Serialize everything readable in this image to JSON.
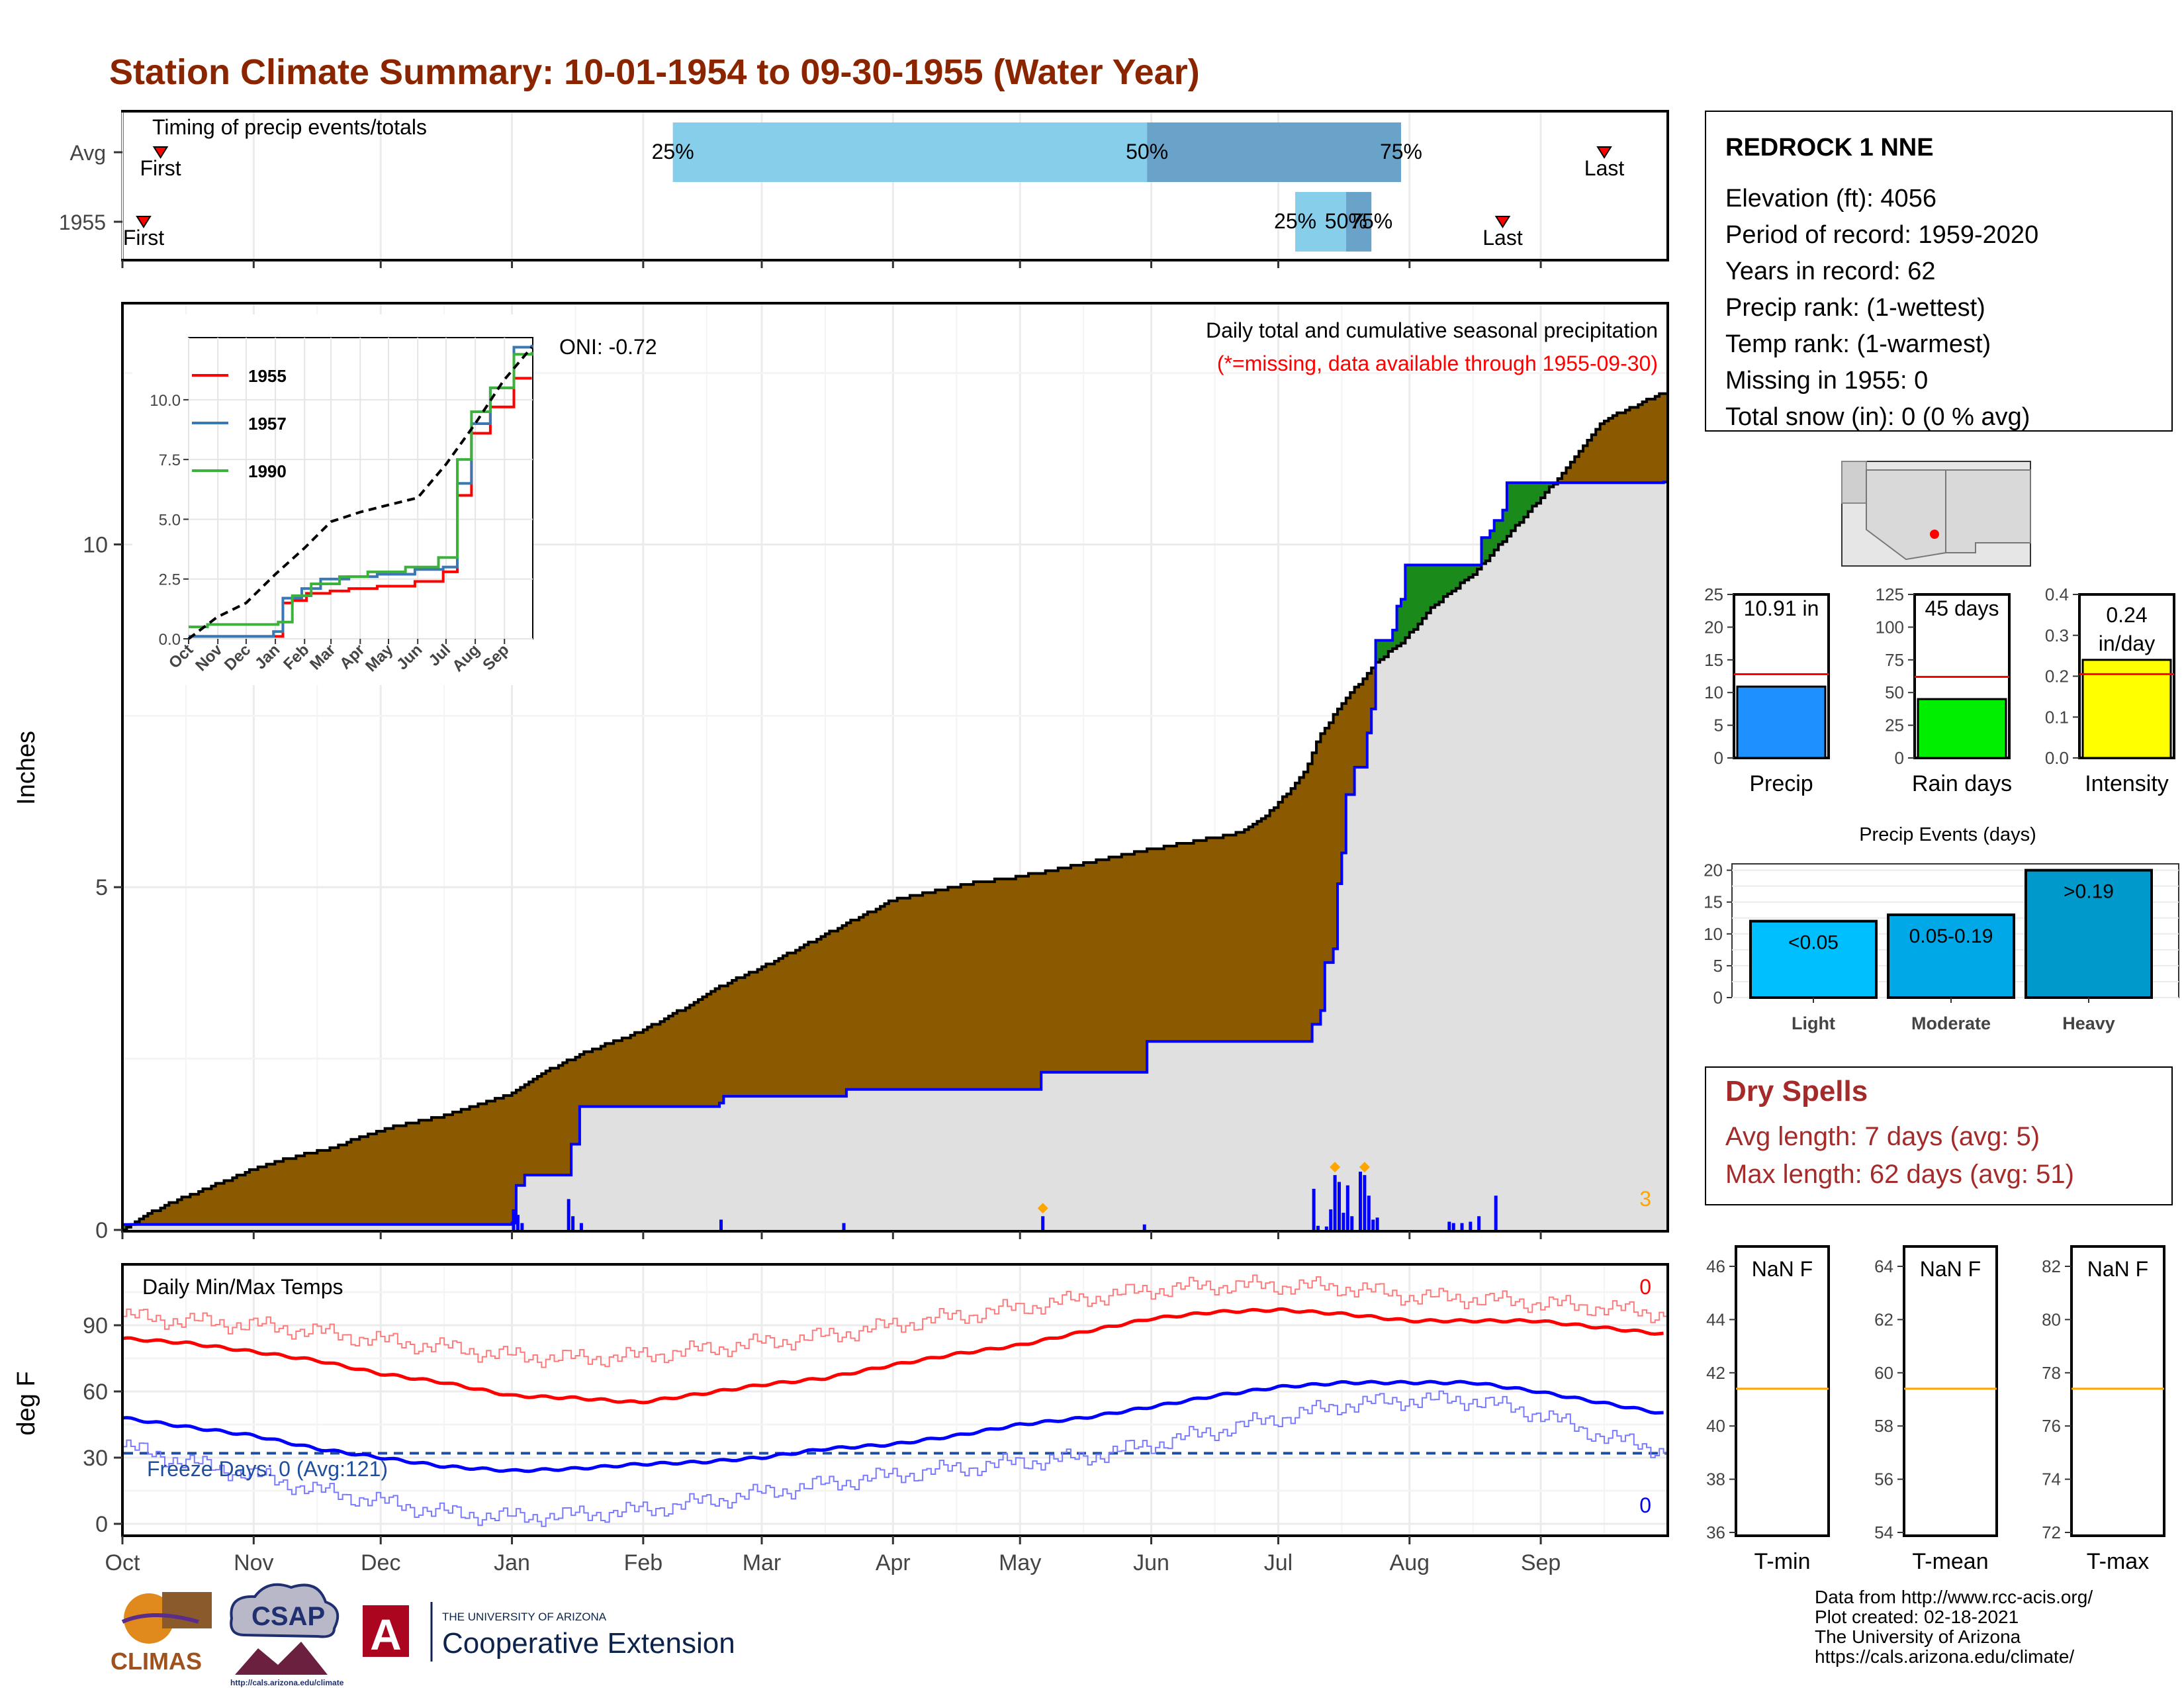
{
  "title": "Station Climate Summary: 10-01-1954 to 09-30-1955 (Water Year)",
  "colors": {
    "title": "#8b2500",
    "brown": "#8b5a00",
    "gray_fill": "#e0e0e0",
    "blue": "#0000ff",
    "green": "#1a8a1a",
    "light_blue": "#87ceeb",
    "mid_blue": "#6aa3c9",
    "red": "#ff0000",
    "orange": "#ffa500",
    "dry_red": "#a52a2a"
  },
  "months": [
    "Oct",
    "Nov",
    "Dec",
    "Jan",
    "Feb",
    "Mar",
    "Apr",
    "May",
    "Jun",
    "Jul",
    "Aug",
    "Sep"
  ],
  "timing": {
    "label": "Timing of precip events/totals",
    "rows": [
      {
        "name": "Avg",
        "first_label": "First",
        "last_label": "Last",
        "first_day": 9,
        "last_day": 350,
        "q25_day": 130,
        "q50_day": 242,
        "q75_day": 302,
        "q25": "25%",
        "q50": "50%",
        "q75": "75%"
      },
      {
        "name": "1955",
        "first_label": "First",
        "last_label": "Last",
        "first_day": 5,
        "last_day": 326,
        "q25_day": 277,
        "q50_day": 289,
        "q75_day": 295,
        "q25": "25%",
        "q50": "50%",
        "q75": "75%"
      }
    ]
  },
  "main_chart": {
    "ylabel": "Inches",
    "yticks": [
      0,
      5,
      10
    ],
    "ymax": 13.5,
    "note1": "Daily total and cumulative seasonal precipitation",
    "note2": "(*=missing, data available through 1955-09-30)",
    "oni": "ONI: -0.72",
    "corner_count": "3"
  },
  "chart_data": [
    {
      "type": "area",
      "title": "Daily total and cumulative seasonal precipitation",
      "ylabel": "Inches",
      "ylim": [
        0,
        13.5
      ],
      "x_unit": "day of water year (0 = Oct 1)",
      "series": [
        {
          "name": "Average cumulative",
          "x": [
            0,
            10,
            20,
            30,
            40,
            50,
            61,
            75,
            91,
            100,
            110,
            123,
            135,
            140,
            152,
            166,
            182,
            200,
            212,
            220,
            243,
            265,
            270,
            273,
            280,
            283,
            290,
            297,
            303,
            310,
            320,
            330,
            340,
            350,
            364
          ],
          "y": [
            0,
            0.35,
            0.6,
            0.85,
            1.05,
            1.2,
            1.45,
            1.65,
            1.95,
            2.3,
            2.6,
            2.9,
            3.3,
            3.5,
            3.85,
            4.3,
            4.8,
            5.05,
            5.15,
            5.25,
            5.55,
            5.8,
            6.0,
            6.2,
            6.7,
            7.2,
            7.8,
            8.3,
            8.6,
            9.1,
            9.6,
            10.3,
            11.0,
            11.8,
            12.2
          ]
        },
        {
          "name": "1955 cumulative",
          "x": [
            0,
            92,
            93,
            95,
            105,
            106,
            108,
            141,
            142,
            170,
            171,
            216,
            217,
            241,
            242,
            280,
            281,
            283,
            284,
            286,
            287,
            288,
            289,
            291,
            294,
            295,
            296,
            297,
            300,
            301,
            302,
            303,
            320,
            321,
            323,
            324,
            326,
            327,
            364
          ],
          "y": [
            0.08,
            0.1,
            0.65,
            0.8,
            0.8,
            1.25,
            1.8,
            1.85,
            1.95,
            1.95,
            2.05,
            2.05,
            2.3,
            2.3,
            2.75,
            2.75,
            3.0,
            3.2,
            3.9,
            4.1,
            5.05,
            5.5,
            6.35,
            6.75,
            7.25,
            7.6,
            8.6,
            8.6,
            8.75,
            9.1,
            9.2,
            9.7,
            9.7,
            10.1,
            10.2,
            10.35,
            10.5,
            10.9,
            10.91
          ]
        }
      ]
    },
    {
      "type": "bar",
      "title": "Daily precipitation (1955)",
      "x": [
        92,
        93,
        94,
        105,
        106,
        108,
        141,
        170,
        217,
        241,
        281,
        282,
        284,
        285,
        286,
        287,
        288,
        289,
        290,
        292,
        293,
        294,
        295,
        296,
        313,
        314,
        316,
        318,
        320,
        324
      ],
      "values": [
        0.3,
        0.22,
        0.1,
        0.45,
        0.2,
        0.1,
        0.15,
        0.1,
        0.2,
        0.08,
        0.6,
        0.06,
        0.05,
        0.3,
        0.8,
        0.7,
        0.25,
        0.65,
        0.2,
        0.85,
        0.8,
        0.5,
        0.15,
        0.18,
        0.12,
        0.1,
        0.1,
        0.12,
        0.2,
        0.5
      ],
      "markers_orange_days": [
        217,
        286,
        293
      ]
    },
    {
      "type": "line",
      "title": "Inset cumulative precipitation (analog years)",
      "categories": [
        "Oct",
        "Nov",
        "Dec",
        "Jan",
        "Feb",
        "Mar",
        "Apr",
        "May",
        "Jun",
        "Jul",
        "Aug",
        "Sep"
      ],
      "ylim": [
        0,
        12.6
      ],
      "yticks": [
        0.0,
        2.5,
        5.0,
        7.5,
        10.0
      ],
      "series": [
        {
          "name": "1955",
          "color": "#ff0000",
          "x": [
            0,
            92,
            100,
            110,
            125,
            150,
            170,
            200,
            240,
            270,
            285,
            300,
            320,
            345,
            364
          ],
          "y": [
            0.1,
            0.1,
            1.5,
            1.6,
            1.9,
            2.0,
            2.1,
            2.2,
            2.4,
            2.8,
            6.0,
            8.6,
            9.7,
            10.9,
            10.9
          ]
        },
        {
          "name": "1957",
          "color": "#3a78b4",
          "x": [
            0,
            60,
            90,
            100,
            120,
            140,
            170,
            200,
            240,
            270,
            285,
            300,
            320,
            345,
            364
          ],
          "y": [
            0.1,
            0.1,
            0.3,
            1.7,
            2.1,
            2.5,
            2.6,
            2.7,
            2.9,
            3.0,
            6.5,
            9.0,
            10.5,
            12.2,
            12.3
          ]
        },
        {
          "name": "1990",
          "color": "#3cb13c",
          "x": [
            0,
            20,
            60,
            95,
            110,
            130,
            160,
            190,
            230,
            265,
            285,
            300,
            320,
            345,
            364
          ],
          "y": [
            0.5,
            0.6,
            0.6,
            0.7,
            1.8,
            2.3,
            2.6,
            2.8,
            3.0,
            3.4,
            7.5,
            9.5,
            10.5,
            11.9,
            12.0
          ]
        },
        {
          "name": "Average",
          "color": "#000000",
          "x": [
            0,
            30,
            61,
            92,
            123,
            151,
            182,
            212,
            243,
            273,
            304,
            334,
            364
          ],
          "y": [
            0,
            0.9,
            1.5,
            2.7,
            3.8,
            4.9,
            5.3,
            5.6,
            5.9,
            7.3,
            9.0,
            10.8,
            12.2
          ]
        }
      ]
    },
    {
      "type": "bar",
      "title": "Precip",
      "categories": [
        "Precip"
      ],
      "values": [
        10.91
      ],
      "avg": 12.8,
      "ylim": [
        0,
        25
      ],
      "yticks": [
        0,
        5,
        10,
        15,
        20,
        25
      ],
      "label": "10.91 in"
    },
    {
      "type": "bar",
      "title": "Rain days",
      "categories": [
        "Rain days"
      ],
      "values": [
        45
      ],
      "avg": 62,
      "ylim": [
        0,
        125
      ],
      "yticks": [
        0,
        25,
        50,
        75,
        100,
        125
      ],
      "label": "45 days"
    },
    {
      "type": "bar",
      "title": "Intensity",
      "categories": [
        "Intensity"
      ],
      "values": [
        0.24
      ],
      "avg": 0.205,
      "ylim": [
        0,
        0.4
      ],
      "yticks": [
        0.0,
        0.1,
        0.2,
        0.3,
        0.4
      ],
      "label": "0.24 in/day"
    },
    {
      "type": "bar",
      "title": "Precip Events (days)",
      "categories": [
        "Light",
        "Moderate",
        "Heavy"
      ],
      "values": [
        12,
        13,
        20
      ],
      "bar_labels": [
        "<0.05",
        "0.05-0.19",
        ">0.19"
      ],
      "ylim": [
        0,
        21
      ],
      "yticks": [
        0,
        5,
        10,
        15,
        20
      ]
    },
    {
      "type": "line",
      "title": "Daily Min/Max Temps",
      "ylabel": "deg F",
      "ylim": [
        -6,
        114
      ],
      "yticks": [
        0,
        30,
        60,
        90
      ],
      "freeze_line": 32,
      "series": [
        {
          "name": "Avg max",
          "color": "#ff0000",
          "x": [
            0,
            15,
            31,
            46,
            61,
            76,
            92,
            107,
            122,
            137,
            151,
            166,
            182,
            197,
            212,
            227,
            243,
            258,
            273,
            289,
            304,
            319,
            334,
            349,
            364
          ],
          "y": [
            84,
            82,
            78,
            74,
            68,
            64,
            58,
            57,
            55,
            59,
            63,
            66,
            72,
            77,
            81,
            87,
            93,
            96,
            97,
            95,
            92,
            92,
            92,
            89,
            86
          ]
        },
        {
          "name": "Avg min",
          "color": "#0000ff",
          "x": [
            0,
            15,
            31,
            46,
            61,
            76,
            92,
            107,
            122,
            137,
            151,
            166,
            182,
            197,
            212,
            227,
            243,
            258,
            273,
            289,
            304,
            319,
            334,
            349,
            364
          ],
          "y": [
            48,
            44,
            40,
            34,
            30,
            26,
            24,
            25,
            27,
            28,
            30,
            34,
            36,
            40,
            45,
            48,
            53,
            58,
            62,
            64,
            64,
            64,
            60,
            55,
            50
          ]
        },
        {
          "name": "Max record",
          "color": "#ff7a7a",
          "x": [
            0,
            15,
            31,
            46,
            61,
            76,
            92,
            107,
            122,
            137,
            151,
            166,
            182,
            197,
            212,
            227,
            243,
            258,
            273,
            289,
            304,
            319,
            334,
            349,
            364
          ],
          "y": [
            94,
            92,
            90,
            87,
            83,
            80,
            76,
            75,
            76,
            79,
            82,
            85,
            90,
            94,
            98,
            102,
            106,
            108,
            108,
            107,
            103,
            102,
            100,
            98,
            95
          ]
        },
        {
          "name": "Min record",
          "color": "#7a7aff",
          "x": [
            0,
            15,
            31,
            46,
            61,
            76,
            92,
            107,
            122,
            137,
            151,
            166,
            182,
            197,
            212,
            227,
            243,
            258,
            273,
            289,
            304,
            319,
            334,
            349,
            364
          ],
          "y": [
            35,
            28,
            22,
            15,
            10,
            5,
            3,
            4,
            6,
            10,
            14,
            18,
            22,
            25,
            28,
            30,
            36,
            42,
            48,
            54,
            56,
            56,
            50,
            40,
            33
          ]
        }
      ]
    },
    {
      "type": "bar",
      "title": "Temperature summary",
      "categories": [
        "T-min",
        "T-mean",
        "T-max"
      ],
      "values": [
        null,
        null,
        null
      ],
      "avgs": [
        41.4,
        59.4,
        77.4
      ]
    }
  ],
  "inset": {
    "legend": [
      "1955",
      "1957",
      "1990"
    ],
    "yticks": [
      "0.0",
      "2.5",
      "5.0",
      "7.5",
      "10.0"
    ],
    "months": [
      "Oct",
      "Nov",
      "Dec",
      "Jan",
      "Feb",
      "Mar",
      "Apr",
      "May",
      "Jun",
      "Jul",
      "Aug",
      "Sep"
    ]
  },
  "temp_chart": {
    "title": "Daily Min/Max Temps",
    "ylabel": "deg F",
    "yticks": [
      "0",
      "30",
      "60",
      "90"
    ],
    "freeze_text": "Freeze Days: 0 (Avg:121)",
    "count_top": "0",
    "count_bottom": "0"
  },
  "station": {
    "name": "REDROCK 1 NNE",
    "lines": [
      "Elevation (ft): 4056",
      "Period of record: 1959-2020",
      "Years in record: 62",
      "Precip rank:  (1-wettest)",
      "Temp rank:  (1-warmest)",
      "Missing in 1955: 0",
      "Total snow (in): 0 (0 % avg)"
    ]
  },
  "mini_bars": [
    {
      "label": "Precip",
      "value_text": "10.91 in",
      "yticks": [
        "0",
        "5",
        "10",
        "15",
        "20",
        "25"
      ],
      "color": "#1e90ff"
    },
    {
      "label": "Rain days",
      "value_text": "45 days",
      "yticks": [
        "0",
        "25",
        "50",
        "75",
        "100",
        "125"
      ],
      "color": "#00ee00"
    },
    {
      "label": "Intensity",
      "value_text_1": "0.24",
      "value_text_2": "in/day",
      "yticks": [
        "0.0",
        "0.1",
        "0.2",
        "0.3",
        "0.4"
      ],
      "color": "#ffff00"
    }
  ],
  "events": {
    "title": "Precip Events (days)",
    "yticks": [
      "0",
      "5",
      "10",
      "15",
      "20"
    ],
    "cats": [
      "Light",
      "Moderate",
      "Heavy"
    ],
    "labels": [
      "<0.05",
      "0.05-0.19",
      ">0.19"
    ]
  },
  "dry_spells": {
    "title": "Dry Spells",
    "avg_length": "Avg length: 7 days (avg: 5)",
    "max_length": "Max length: 62 days (avg: 51)"
  },
  "temp_boxes": [
    {
      "label": "T-min",
      "value": "NaN F",
      "yticks": [
        "36",
        "38",
        "40",
        "42",
        "44",
        "46"
      ]
    },
    {
      "label": "T-mean",
      "value": "NaN F",
      "yticks": [
        "54",
        "56",
        "58",
        "60",
        "62",
        "64"
      ]
    },
    {
      "label": "T-max",
      "value": "NaN F",
      "yticks": [
        "72",
        "74",
        "76",
        "78",
        "80",
        "82"
      ]
    }
  ],
  "footer": {
    "lines": [
      "Data from http://www.rcc-acis.org/",
      "Plot created: 02-18-2021",
      "The University of Arizona",
      "https://cals.arizona.edu/climate/"
    ],
    "climas": "CLIMAS",
    "csap": "CSAP",
    "csap_url": "http://cals.arizona.edu/climate",
    "ua_top": "THE UNIVERSITY OF ARIZONA",
    "ua_bottom": "Cooperative Extension",
    "ua_letter": "A"
  }
}
